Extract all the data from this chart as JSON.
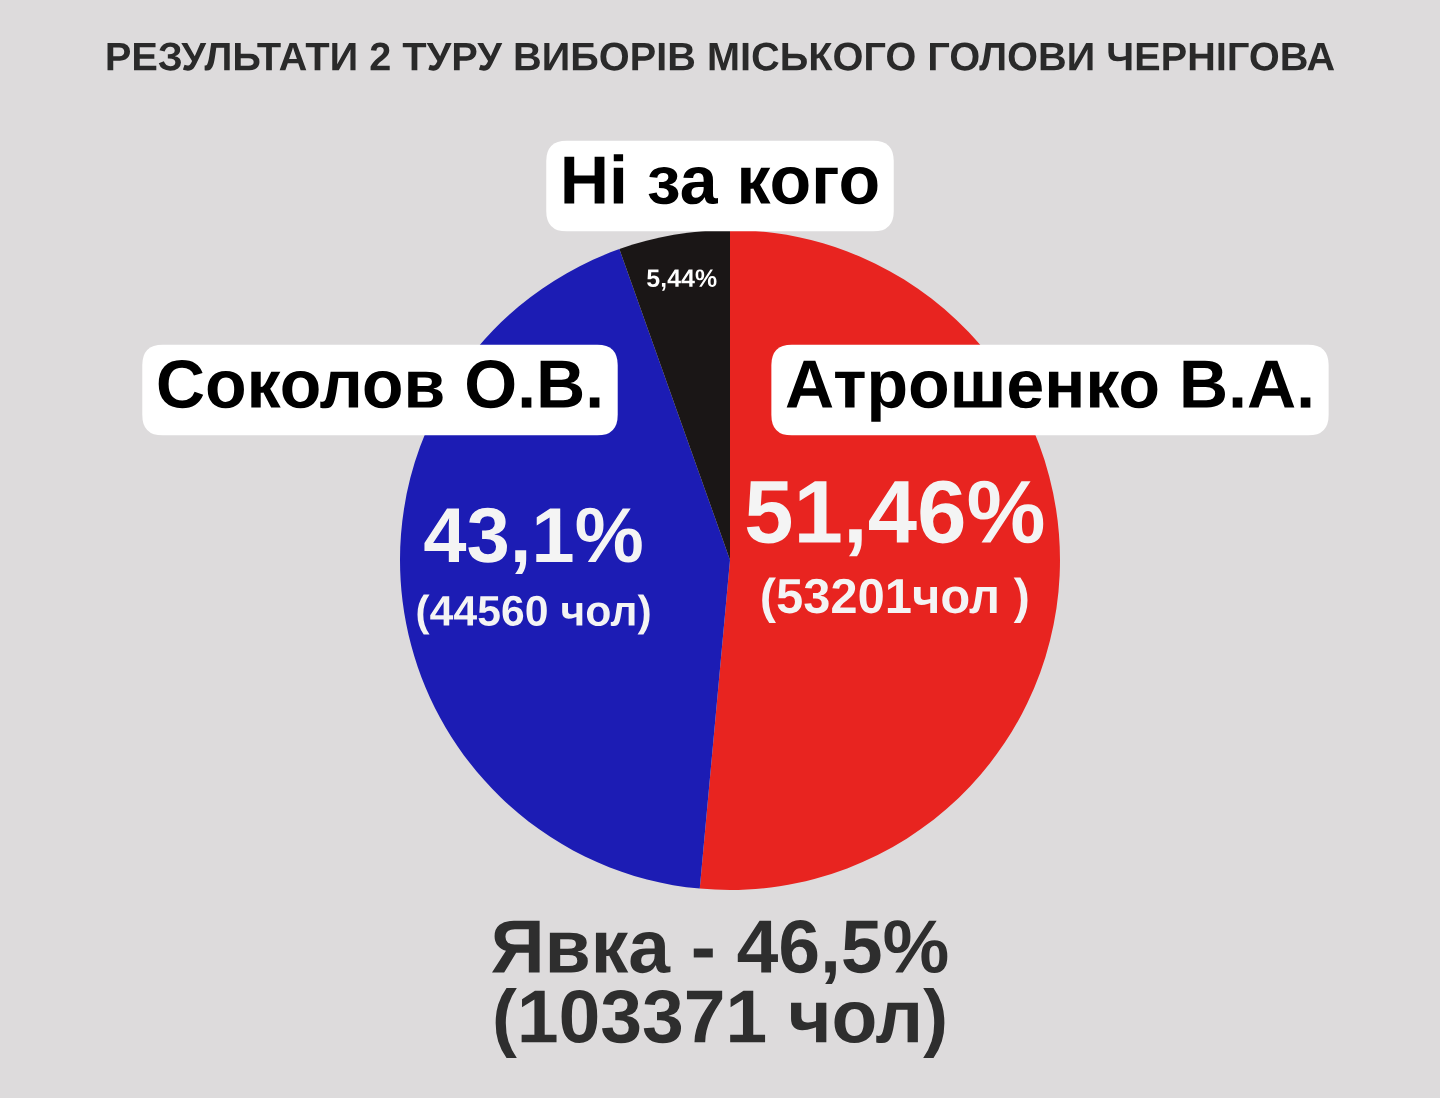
{
  "chart_data": {
    "type": "pie",
    "title": "РЕЗУЛЬТАТИ 2 ТУРУ ВИБОРІВ МІСЬКОГО ГОЛОВИ ЧЕРНІГОВА",
    "categories": [
      "Атрошенко В.А.",
      "Соколов О.В.",
      "Ні за кого"
    ],
    "values": [
      51.46,
      43.1,
      5.44
    ],
    "colors": [
      "#e82420",
      "#1c1cb4",
      "#1a1616"
    ],
    "value_labels": [
      "51,46%\n(53201чол )",
      "43,1%\n(44560 чол)",
      "5,44%"
    ],
    "annotations": [
      "Явка - 46,5%\n(103371 чол)"
    ]
  }
}
